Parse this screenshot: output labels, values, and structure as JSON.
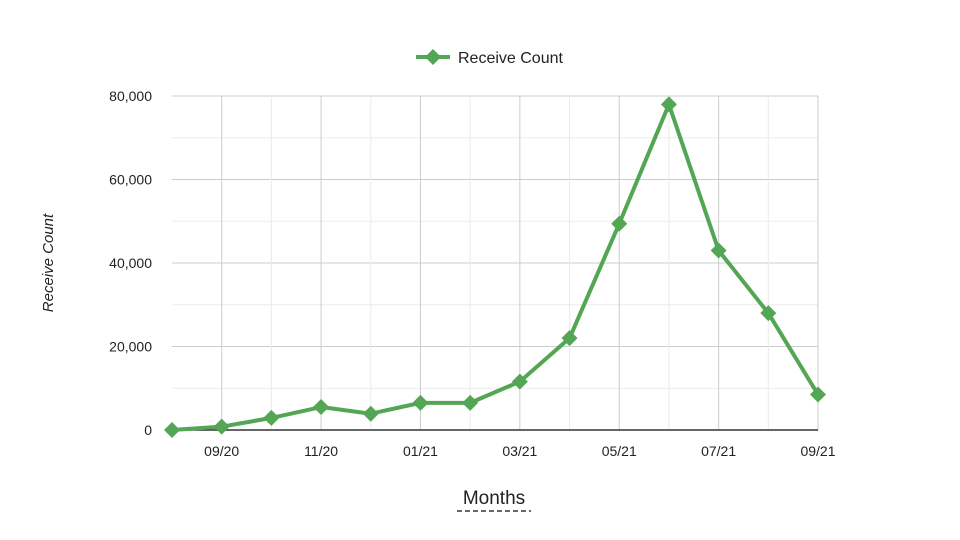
{
  "chart_data": {
    "type": "line",
    "x": [
      "08/20",
      "09/20",
      "10/20",
      "11/20",
      "12/20",
      "01/21",
      "02/21",
      "03/21",
      "04/21",
      "05/21",
      "06/21",
      "07/21",
      "08/21",
      "09/21"
    ],
    "x_tick_labels": [
      "09/20",
      "11/20",
      "01/21",
      "03/21",
      "05/21",
      "07/21",
      "09/21"
    ],
    "series": [
      {
        "name": "Receive Count",
        "values": [
          0,
          800,
          2900,
          5500,
          3900,
          6500,
          6500,
          11600,
          22000,
          49400,
          78000,
          43000,
          28000,
          8500
        ]
      }
    ],
    "title": "",
    "xlabel": "Months",
    "ylabel": "Receive Count",
    "ylim": [
      0,
      80000
    ],
    "y_ticks": [
      0,
      20000,
      40000,
      60000,
      80000
    ],
    "y_tick_labels": [
      "0",
      "20,000",
      "40,000",
      "60,000",
      "80,000"
    ],
    "grid": true,
    "legend_position": "top",
    "series_color": "#53a653",
    "marker": "diamond"
  }
}
